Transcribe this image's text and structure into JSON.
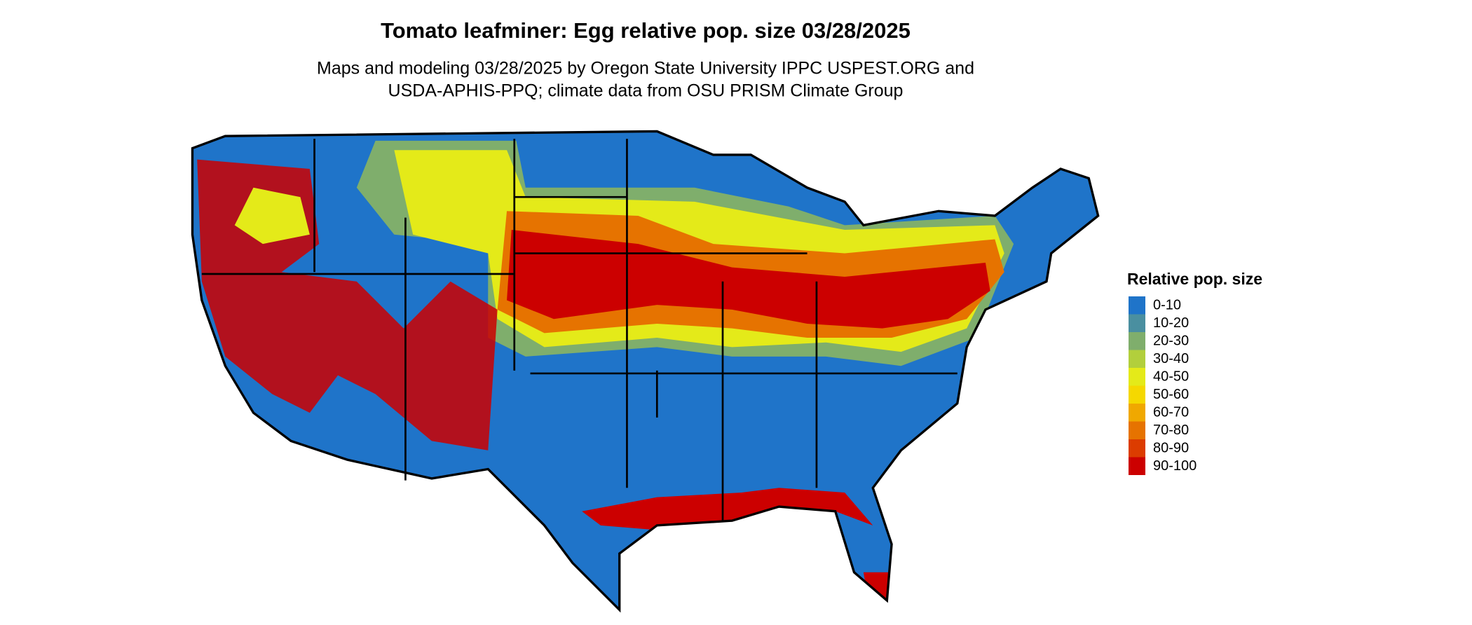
{
  "title": "Tomato leafminer: Egg relative pop. size 03/28/2025",
  "subtitle": [
    "Maps and modeling 03/28/2025 by Oregon State University IPPC USPEST.ORG and",
    "USDA-APHIS-PPQ; climate data from OSU PRISM Climate Group"
  ],
  "legend": {
    "title": "Relative pop. size",
    "items": [
      {
        "label": "0-10",
        "color": "#1f74c9"
      },
      {
        "label": "10-20",
        "color": "#4a8fa0"
      },
      {
        "label": "20-30",
        "color": "#7fae6c"
      },
      {
        "label": "30-40",
        "color": "#b2cf3c"
      },
      {
        "label": "40-50",
        "color": "#e4ea19"
      },
      {
        "label": "50-60",
        "color": "#f5d800"
      },
      {
        "label": "60-70",
        "color": "#f0a800"
      },
      {
        "label": "70-80",
        "color": "#e67300"
      },
      {
        "label": "80-90",
        "color": "#dc3c00"
      },
      {
        "label": "90-100",
        "color": "#cc0000"
      }
    ]
  }
}
